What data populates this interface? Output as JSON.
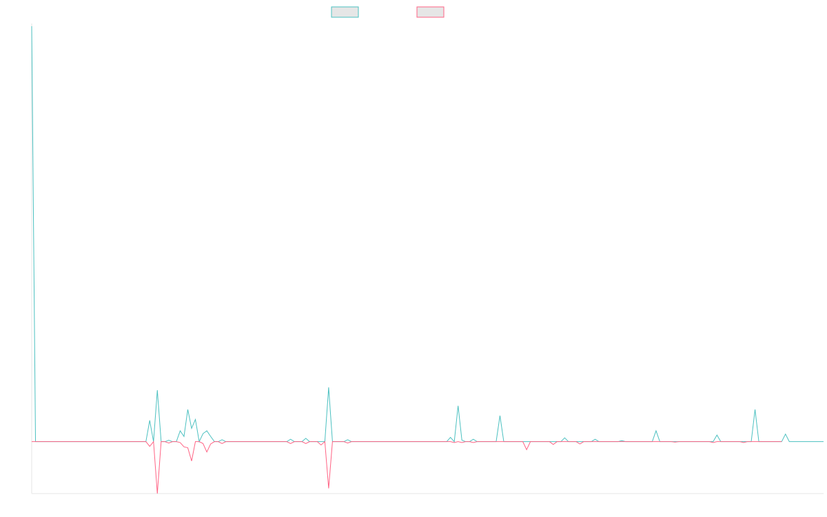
{
  "chart_data": {
    "type": "line",
    "title": "",
    "xlabel": "",
    "ylabel": "",
    "grid": false,
    "legend": "top-center",
    "x_range": [
      0,
      200
    ],
    "ylim": [
      -1.1,
      8.8
    ],
    "colors": [
      "#4bc0c0",
      "#ff6384"
    ],
    "series": [
      {
        "name": "",
        "color": "#4bc0c0",
        "values": [
          8.8,
          0,
          0,
          0,
          0,
          0,
          0,
          0,
          0,
          0,
          0,
          0,
          0,
          0,
          0,
          0,
          0,
          0,
          0,
          0,
          0,
          0,
          0,
          0,
          0,
          0,
          0,
          0,
          0,
          0,
          0,
          0.45,
          0,
          1.09,
          0,
          0,
          0.03,
          0,
          0,
          0.23,
          0.11,
          0.68,
          0.28,
          0.47,
          0,
          0.17,
          0.23,
          0.11,
          0,
          0,
          0.04,
          0,
          0,
          0,
          0,
          0,
          0,
          0,
          0,
          0,
          0,
          0,
          0,
          0,
          0,
          0,
          0,
          0,
          0.05,
          0,
          0,
          0,
          0.07,
          0,
          0,
          0,
          0,
          0,
          1.15,
          0,
          0,
          0,
          0,
          0.04,
          0,
          0,
          0,
          0,
          0,
          0,
          0,
          0,
          0,
          0,
          0,
          0,
          0,
          0,
          0,
          0,
          0,
          0,
          0,
          0,
          0,
          0,
          0,
          0,
          0,
          0,
          0.09,
          0,
          0.76,
          0.03,
          0,
          0,
          0.05,
          0,
          0,
          0,
          0,
          0,
          0,
          0.55,
          0,
          0,
          0,
          0,
          0,
          0,
          0,
          0,
          0,
          0,
          0,
          0,
          0,
          0,
          0,
          0,
          0.08,
          0,
          0,
          0,
          0,
          0,
          0,
          0,
          0.05,
          0,
          0,
          0,
          0,
          0,
          0,
          0.02,
          0,
          0,
          0,
          0,
          0,
          0,
          0,
          0,
          0.23,
          0,
          0,
          0,
          0,
          0,
          0,
          0,
          0,
          0,
          0,
          0,
          0,
          0,
          0,
          0,
          0.14,
          0,
          0,
          0,
          0,
          0,
          0,
          0,
          0,
          0,
          0.68,
          0,
          0,
          0,
          0,
          0,
          0,
          0,
          0.16,
          0,
          0,
          0,
          0,
          0,
          0,
          0,
          0,
          0,
          0
        ]
      },
      {
        "name": "",
        "color": "#ff6384",
        "values": [
          0,
          0,
          0,
          0,
          0,
          0,
          0,
          0,
          0,
          0,
          0,
          0,
          0,
          0,
          0,
          0,
          0,
          0,
          0,
          0,
          0,
          0,
          0,
          0,
          0,
          0,
          0,
          0,
          0,
          0,
          0,
          -0.1,
          0,
          -1.1,
          0,
          0,
          -0.03,
          0,
          0,
          -0.02,
          -0.11,
          -0.13,
          -0.41,
          0,
          0,
          -0.04,
          -0.22,
          -0.05,
          0,
          0,
          -0.04,
          0,
          0,
          0,
          0,
          0,
          0,
          0,
          0,
          0,
          0,
          0,
          0,
          0,
          0,
          0,
          0,
          0,
          -0.04,
          0,
          0,
          0,
          -0.04,
          0,
          0,
          0,
          -0.07,
          0,
          -0.99,
          0,
          0,
          0,
          0,
          -0.03,
          0,
          0,
          0,
          0,
          0,
          0,
          0,
          0,
          0,
          0,
          0,
          0,
          0,
          0,
          0,
          0,
          0,
          0,
          0,
          0,
          0,
          0,
          0,
          0,
          0,
          0,
          0,
          -0.02,
          0,
          -0.02,
          0,
          0,
          -0.02,
          0,
          0,
          0,
          0,
          0,
          0,
          0,
          0,
          0,
          0,
          0,
          0,
          0,
          -0.17,
          0,
          0,
          0,
          0,
          0,
          0,
          -0.06,
          0,
          0,
          0,
          0,
          0,
          0,
          -0.05,
          0,
          0,
          0,
          0,
          0,
          0,
          0,
          0,
          0,
          0,
          0,
          0,
          0,
          0,
          0,
          0,
          0,
          0,
          0,
          0,
          0,
          0,
          0,
          0,
          -0.01,
          0,
          0,
          0,
          0,
          0,
          0,
          0,
          0,
          0,
          -0.02,
          0,
          0,
          0,
          0,
          0,
          0,
          0,
          -0.02,
          0,
          0,
          0,
          0,
          0,
          0,
          0,
          0,
          0,
          0
        ]
      }
    ]
  }
}
